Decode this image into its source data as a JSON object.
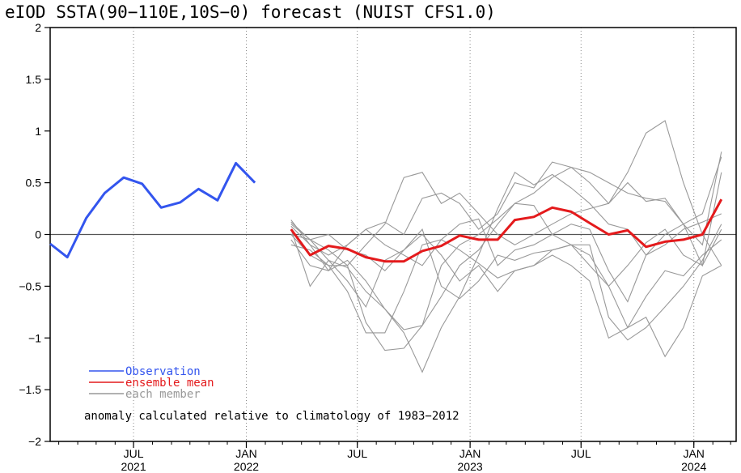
{
  "chart_data": {
    "type": "line",
    "title": "eIOD SSTA(90−110E,10S−0) forecast (NUIST CFS1.0)",
    "xlim": [
      "2021-02-15",
      "2024-03-10"
    ],
    "ylim": [
      -2,
      2
    ],
    "yticks": [
      {
        "value": 2,
        "label": "2"
      },
      {
        "value": 1.5,
        "label": "1.5"
      },
      {
        "value": 1,
        "label": "1"
      },
      {
        "value": 0.5,
        "label": "0.5"
      },
      {
        "value": 0,
        "label": "0"
      },
      {
        "value": -0.5,
        "label": "−0.5"
      },
      {
        "value": -1,
        "label": "−1"
      },
      {
        "value": -1.5,
        "label": "−1.5"
      },
      {
        "value": -2,
        "label": "−2"
      }
    ],
    "xticks": [
      {
        "date": "2021-07-01",
        "month": "JUL",
        "year": "2021"
      },
      {
        "date": "2022-01-01",
        "month": "JAN",
        "year": "2022"
      },
      {
        "date": "2022-07-01",
        "month": "JUL",
        "year": ""
      },
      {
        "date": "2023-01-01",
        "month": "JAN",
        "year": "2023"
      },
      {
        "date": "2023-07-01",
        "month": "JUL",
        "year": ""
      },
      {
        "date": "2024-01-01",
        "month": "JAN",
        "year": "2024"
      }
    ],
    "zero_line": true,
    "observation": {
      "name": "Observation",
      "color": "#3355ee",
      "x": [
        "2021-02-15",
        "2021-03-15",
        "2021-04-15",
        "2021-05-15",
        "2021-06-15",
        "2021-07-15",
        "2021-08-15",
        "2021-09-15",
        "2021-10-15",
        "2021-11-15",
        "2021-12-15",
        "2022-01-15",
        "2022-02-15"
      ],
      "y": [
        -0.09,
        -0.22,
        0.16,
        0.4,
        0.55,
        0.49,
        0.26,
        0.31,
        0.44,
        0.33,
        0.69,
        0.5,
        null
      ]
    },
    "ensemble_mean": {
      "name": "ensemble mean",
      "color": "#e41a1c",
      "x": [
        "2022-03-15",
        "2022-04-15",
        "2022-05-15",
        "2022-06-15",
        "2022-07-15",
        "2022-08-15",
        "2022-09-15",
        "2022-10-15",
        "2022-11-15",
        "2022-12-15",
        "2023-01-15",
        "2023-02-15",
        "2023-03-15",
        "2023-04-15",
        "2023-05-15",
        "2023-06-15",
        "2023-07-15",
        "2023-08-15",
        "2023-09-15",
        "2023-10-15",
        "2023-11-15",
        "2023-12-15",
        "2024-01-15",
        "2024-02-15"
      ],
      "y": [
        0.05,
        -0.2,
        -0.11,
        -0.14,
        -0.22,
        -0.26,
        -0.26,
        -0.16,
        -0.11,
        -0.01,
        -0.05,
        -0.05,
        0.14,
        0.17,
        0.26,
        0.22,
        0.11,
        0.0,
        0.04,
        -0.12,
        -0.07,
        -0.05,
        0.0,
        0.34
      ]
    },
    "members": {
      "name": "each member",
      "color": "#999999",
      "x": [
        "2022-03-15",
        "2022-04-15",
        "2022-05-15",
        "2022-06-15",
        "2022-07-15",
        "2022-08-15",
        "2022-09-15",
        "2022-10-15",
        "2022-11-15",
        "2022-12-15",
        "2023-01-15",
        "2023-02-15",
        "2023-03-15",
        "2023-04-15",
        "2023-05-15",
        "2023-06-15",
        "2023-07-15",
        "2023-08-15",
        "2023-09-15",
        "2023-10-15",
        "2023-11-15",
        "2023-12-15",
        "2024-01-15",
        "2024-02-15"
      ],
      "series": [
        {
          "y": [
            0.12,
            -0.05,
            -0.15,
            -0.3,
            -0.85,
            -1.12,
            -1.1,
            -0.88,
            -0.6,
            -0.3,
            -0.15,
            0.1,
            0.3,
            0.4,
            0.55,
            0.65,
            0.5,
            0.3,
            0.6,
            0.98,
            1.1,
            0.5,
            0.0,
            -0.3
          ]
        },
        {
          "y": [
            0.14,
            -0.1,
            -0.2,
            -0.1,
            0.05,
            0.12,
            0.0,
            0.35,
            0.4,
            0.3,
            0.05,
            0.2,
            0.5,
            0.45,
            0.7,
            0.65,
            0.6,
            0.5,
            0.4,
            0.35,
            0.32,
            0.1,
            -0.1,
            0.8
          ]
        },
        {
          "y": [
            0.1,
            -0.05,
            -0.25,
            -0.32,
            -0.55,
            -0.72,
            -0.95,
            -1.33,
            -0.9,
            -0.6,
            -0.2,
            0.25,
            0.6,
            0.48,
            0.58,
            0.45,
            0.3,
            0.1,
            0.05,
            -0.2,
            -0.1,
            0.05,
            0.12,
            0.2
          ]
        },
        {
          "y": [
            0.0,
            -0.2,
            -0.3,
            -0.3,
            -0.1,
            0.1,
            0.55,
            0.6,
            0.3,
            0.4,
            0.2,
            0.0,
            -0.1,
            0.0,
            0.1,
            0.2,
            0.25,
            0.3,
            0.5,
            0.32,
            0.35,
            0.1,
            -0.3,
            0.6
          ]
        },
        {
          "y": [
            0.08,
            -0.1,
            -0.35,
            -0.25,
            -0.45,
            -0.72,
            -0.92,
            -0.88,
            -0.3,
            -0.1,
            0.0,
            0.15,
            0.3,
            0.28,
            0.0,
            -0.1,
            -0.2,
            -0.5,
            -0.3,
            -0.08,
            0.05,
            -0.2,
            -0.3,
            0.05
          ]
        },
        {
          "y": [
            -0.05,
            -0.3,
            -0.35,
            -0.1,
            0.05,
            -0.1,
            -0.2,
            -0.3,
            -0.05,
            0.1,
            0.15,
            -0.3,
            -0.15,
            -0.1,
            0.0,
            0.1,
            0.05,
            -0.35,
            -0.65,
            -0.2,
            0.0,
            0.1,
            0.2,
            0.75
          ]
        },
        {
          "y": [
            0.05,
            -0.5,
            -0.25,
            -0.45,
            -0.7,
            -0.25,
            -0.15,
            0.0,
            -0.2,
            -0.45,
            -0.3,
            -0.55,
            -0.35,
            -0.3,
            -0.2,
            -0.3,
            -0.45,
            -1.0,
            -0.9,
            -0.8,
            -1.18,
            -0.9,
            -0.4,
            -0.3
          ]
        },
        {
          "y": [
            -0.1,
            -0.15,
            -0.3,
            -0.55,
            -0.95,
            -0.95,
            -0.55,
            -0.1,
            -0.05,
            -0.15,
            -0.28,
            -0.42,
            -0.35,
            -0.3,
            -0.15,
            -0.1,
            -0.3,
            -0.5,
            -0.9,
            -0.6,
            -0.35,
            -0.4,
            -0.2,
            -0.05
          ]
        },
        {
          "y": [
            0.0,
            -0.05,
            0.0,
            -0.15,
            -0.2,
            -0.35,
            -0.15,
            0.05,
            -0.5,
            -0.62,
            -0.45,
            -0.2,
            -0.25,
            -0.18,
            -0.15,
            -0.1,
            -0.1,
            -0.8,
            -1.02,
            -0.9,
            -0.7,
            -0.5,
            -0.25,
            0.1
          ]
        }
      ]
    },
    "legend": {
      "placement": "bottom-left",
      "items": [
        {
          "label": "Observation",
          "color": "#3355ee"
        },
        {
          "label": "ensemble mean",
          "color": "#e41a1c"
        },
        {
          "label": "each member",
          "color": "#999999"
        }
      ]
    },
    "note": "anomaly calculated relative to climatology of 1983−2012"
  }
}
